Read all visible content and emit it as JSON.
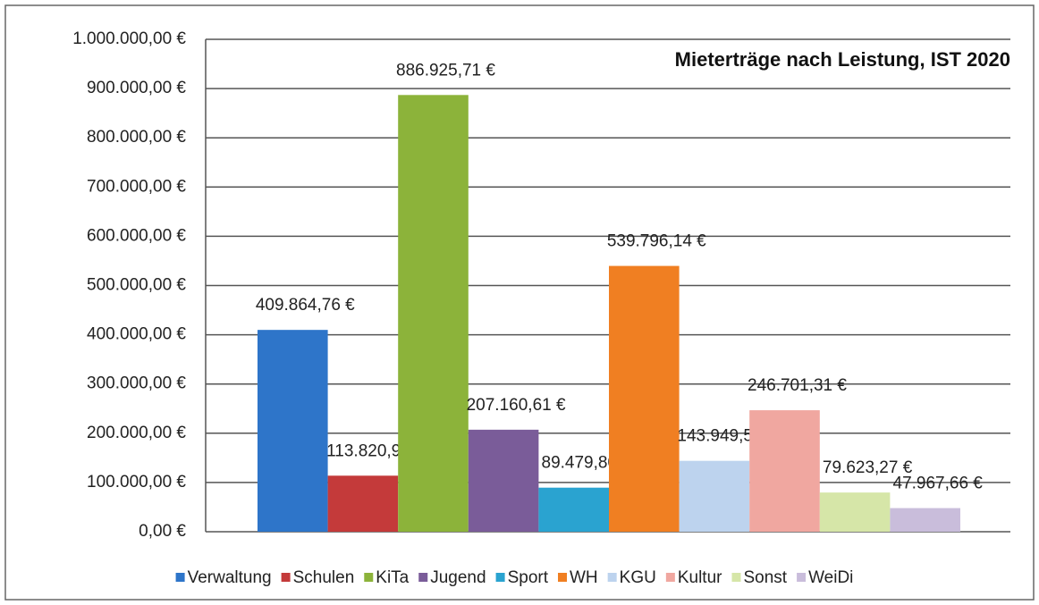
{
  "chart_data": {
    "type": "bar",
    "title": "Mieterträge nach Leistung, IST 2020",
    "ylim": [
      0,
      1000000
    ],
    "yticks": [
      {
        "value": 0,
        "label": "0,00 €"
      },
      {
        "value": 100000,
        "label": "100.000,00 €"
      },
      {
        "value": 200000,
        "label": "200.000,00 €"
      },
      {
        "value": 300000,
        "label": "300.000,00 €"
      },
      {
        "value": 400000,
        "label": "400.000,00 €"
      },
      {
        "value": 500000,
        "label": "500.000,00 €"
      },
      {
        "value": 600000,
        "label": "600.000,00 €"
      },
      {
        "value": 700000,
        "label": "700.000,00 €"
      },
      {
        "value": 800000,
        "label": "800.000,00 €"
      },
      {
        "value": 900000,
        "label": "900.000,00 €"
      },
      {
        "value": 1000000,
        "label": "1.000.000,00 €"
      }
    ],
    "grid": true,
    "legend": "bottom",
    "series": [
      {
        "name": "Verwaltung",
        "color": "#2e75c9",
        "values": [
          409864.76
        ],
        "value_labels": [
          "409.864,76 €"
        ]
      },
      {
        "name": "Schulen",
        "color": "#c43a3a",
        "values": [
          113820.98
        ],
        "value_labels": [
          "113.820,98 €"
        ]
      },
      {
        "name": "KiTa",
        "color": "#8cb33a",
        "values": [
          886925.71
        ],
        "value_labels": [
          "886.925,71 €"
        ]
      },
      {
        "name": "Jugend",
        "color": "#7a5c99",
        "values": [
          207160.61
        ],
        "value_labels": [
          "207.160,61 €"
        ]
      },
      {
        "name": "Sport",
        "color": "#2aa3d0",
        "values": [
          89479.8
        ],
        "value_labels": [
          "89.479,80 €"
        ]
      },
      {
        "name": "WH",
        "color": "#f07f22",
        "values": [
          539796.14
        ],
        "value_labels": [
          "539.796,14 €"
        ]
      },
      {
        "name": "KGU",
        "color": "#bdd3ee",
        "values": [
          143949.5
        ],
        "value_labels": [
          "143.949,50 €"
        ]
      },
      {
        "name": "Kultur",
        "color": "#f0a7a0",
        "values": [
          246701.31
        ],
        "value_labels": [
          "246.701,31 €"
        ]
      },
      {
        "name": "Sonst",
        "color": "#d6e6a8",
        "values": [
          79623.27
        ],
        "value_labels": [
          "79.623,27 €"
        ]
      },
      {
        "name": "WeiDi",
        "color": "#c9bddb",
        "values": [
          47967.66
        ],
        "value_labels": [
          "47.967,66 €"
        ]
      }
    ]
  }
}
